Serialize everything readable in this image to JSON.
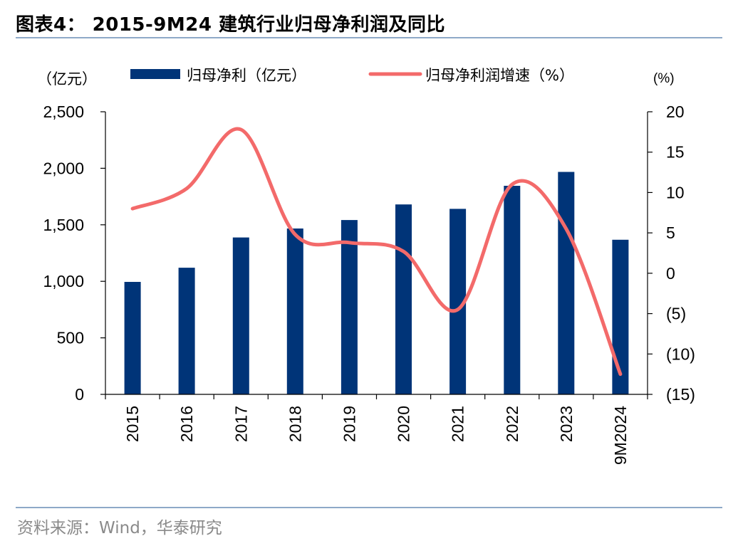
{
  "title": "图表4：  2015-9M24 建筑行业归母净利润及同比",
  "source": "资料来源：Wind，华泰研究",
  "colors": {
    "bar": "#003478",
    "line": "#f36a6a",
    "rule": "#8ea9c8",
    "axis": "#000000"
  },
  "chart_data": {
    "type": "bar+line",
    "categories": [
      "2015",
      "2016",
      "2017",
      "2018",
      "2019",
      "2020",
      "2021",
      "2022",
      "2023",
      "9M2024"
    ],
    "left_unit": "（亿元）",
    "right_unit": "(%)",
    "left_ylim": [
      0,
      2500
    ],
    "left_ticks": [
      0,
      500,
      1000,
      1500,
      2000,
      2500
    ],
    "left_tick_labels": [
      "0",
      "500",
      "1,000",
      "1,500",
      "2,000",
      "2,500"
    ],
    "right_ylim": [
      -15,
      20
    ],
    "right_ticks": [
      20,
      15,
      10,
      5,
      0,
      -5,
      -10,
      -15
    ],
    "right_tick_labels": [
      "20",
      "15",
      "10",
      "5",
      "0",
      "(5)",
      "(10)",
      "(15)"
    ],
    "series": [
      {
        "name": "归母净利（亿元）",
        "type": "bar",
        "axis": "left",
        "values": [
          995,
          1120,
          1388,
          1467,
          1542,
          1680,
          1641,
          1845,
          1968,
          1368
        ]
      },
      {
        "name": "归母净利润增速（%）",
        "type": "line",
        "axis": "right",
        "values": [
          8.0,
          10.5,
          17.8,
          4.8,
          3.8,
          2.7,
          -4.5,
          11.0,
          5.5,
          -12.5
        ]
      }
    ]
  }
}
